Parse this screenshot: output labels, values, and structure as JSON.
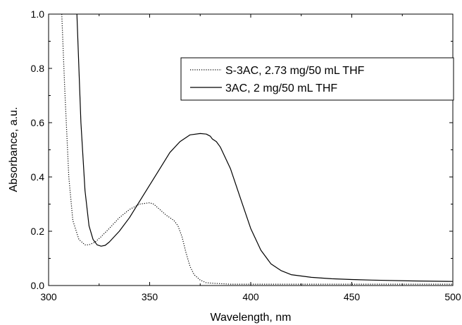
{
  "chart_data": {
    "type": "line",
    "xlabel": "Wavelength, nm",
    "ylabel": "Absorbance, a.u.",
    "xlim": [
      300,
      500
    ],
    "ylim": [
      0.0,
      1.0
    ],
    "x_ticks": [
      300,
      350,
      400,
      450,
      500
    ],
    "x_tick_labels": [
      "300",
      "350",
      "400",
      "450",
      "500"
    ],
    "y_ticks": [
      0.0,
      0.2,
      0.4,
      0.6,
      0.8,
      1.0
    ],
    "y_tick_labels": [
      "0.0",
      "0.2",
      "0.4",
      "0.6",
      "0.8",
      "1.0"
    ],
    "grid": false,
    "legend_position": "top-right",
    "series": [
      {
        "name": "S-3AC, 2.73 mg/50 mL THF",
        "style": "dotted",
        "color": "#000000",
        "x": [
          306.5,
          308,
          310,
          312,
          315,
          318,
          320,
          323,
          326,
          330,
          335,
          340,
          345,
          350,
          352,
          355,
          358,
          360,
          362,
          364,
          366,
          368,
          370,
          372,
          375,
          378,
          382,
          390,
          400,
          420,
          450,
          500
        ],
        "y": [
          1.0,
          0.72,
          0.4,
          0.24,
          0.17,
          0.15,
          0.15,
          0.16,
          0.18,
          0.21,
          0.25,
          0.28,
          0.3,
          0.305,
          0.3,
          0.28,
          0.26,
          0.25,
          0.24,
          0.22,
          0.18,
          0.12,
          0.07,
          0.04,
          0.02,
          0.01,
          0.008,
          0.005,
          0.005,
          0.005,
          0.005,
          0.005
        ]
      },
      {
        "name": "3AC, 2 mg/50 mL THF",
        "style": "solid",
        "color": "#000000",
        "x": [
          314,
          316,
          318,
          320,
          322,
          324,
          326,
          328,
          330,
          335,
          340,
          345,
          350,
          355,
          360,
          365,
          370,
          375,
          378,
          380,
          381,
          383,
          385,
          390,
          395,
          400,
          405,
          410,
          415,
          420,
          430,
          440,
          450,
          460,
          480,
          500
        ],
        "y": [
          1.0,
          0.6,
          0.35,
          0.22,
          0.17,
          0.15,
          0.145,
          0.148,
          0.16,
          0.2,
          0.25,
          0.31,
          0.37,
          0.43,
          0.49,
          0.53,
          0.555,
          0.56,
          0.558,
          0.55,
          0.54,
          0.53,
          0.51,
          0.43,
          0.32,
          0.21,
          0.13,
          0.08,
          0.055,
          0.04,
          0.03,
          0.025,
          0.022,
          0.02,
          0.017,
          0.015
        ]
      }
    ]
  }
}
